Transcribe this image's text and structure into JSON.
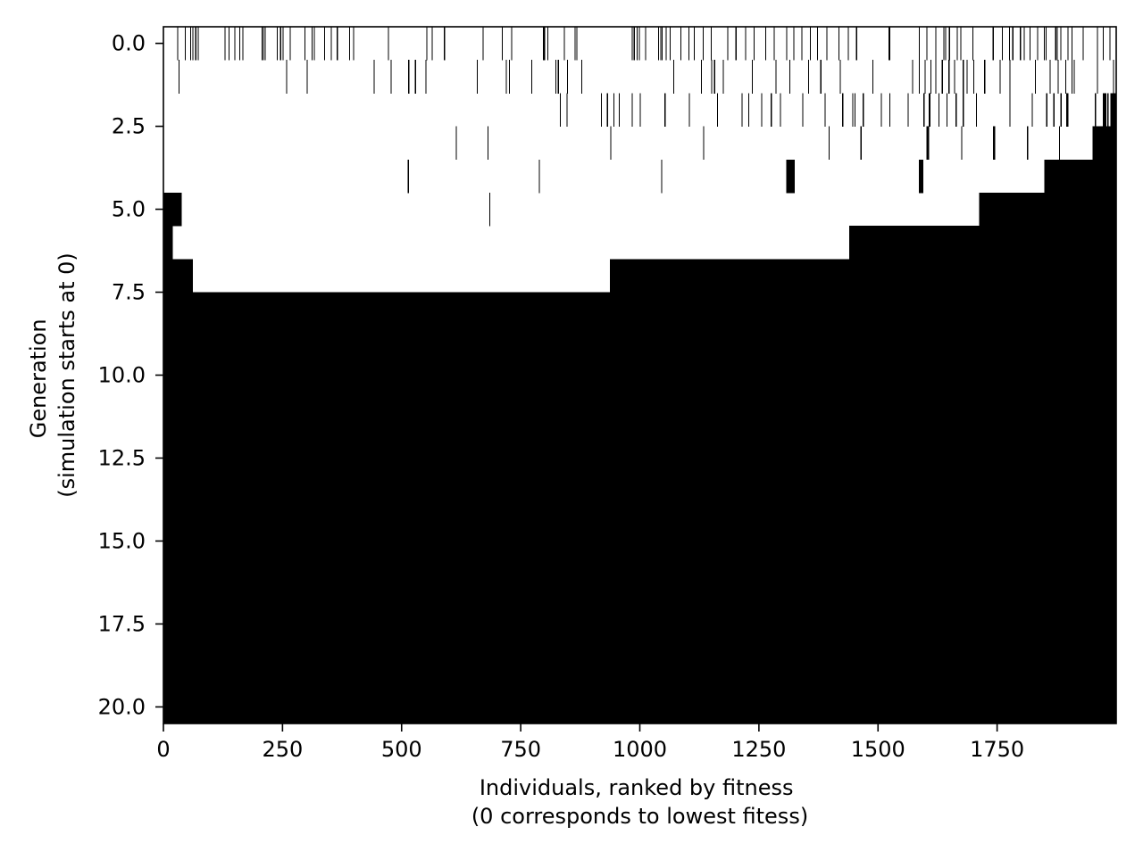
{
  "chart_data": {
    "type": "heatmap",
    "title": "",
    "xlabel_lines": [
      "Individuals, ranked by fitness",
      "(0 corresponds to lowest fitess)"
    ],
    "ylabel_lines": [
      "Generation",
      "(simulation starts at 0)"
    ],
    "x_ticks": [
      0,
      250,
      500,
      750,
      1000,
      1250,
      1500,
      1750
    ],
    "x_tick_labels": [
      "0",
      "250",
      "500",
      "750",
      "1000",
      "1250",
      "1500",
      "1750"
    ],
    "y_ticks": [
      0.0,
      2.5,
      5.0,
      7.5,
      10.0,
      12.5,
      15.0,
      17.5,
      20.0
    ],
    "y_tick_labels": [
      "0.0",
      "2.5",
      "5.0",
      "7.5",
      "10.0",
      "12.5",
      "15.0",
      "17.5",
      "20.0"
    ],
    "xlim": [
      0,
      2000
    ],
    "ylim": [
      -0.5,
      20.5
    ],
    "y_inverted": true,
    "n_individuals": 2000,
    "n_generations": 21,
    "colors": {
      "background": "#ffffff",
      "cell_on": "#000000"
    },
    "rows": [
      {
        "generation": 0,
        "runs": [
          [
            29,
            31
          ],
          [
            45,
            47
          ],
          [
            56,
            58
          ],
          [
            61,
            63
          ],
          [
            67,
            69
          ],
          [
            72,
            74
          ],
          [
            128,
            130
          ],
          [
            137,
            139
          ],
          [
            149,
            151
          ],
          [
            159,
            161
          ],
          [
            166,
            168
          ],
          [
            206,
            208
          ],
          [
            209,
            211
          ],
          [
            213,
            215
          ],
          [
            238,
            240
          ],
          [
            245,
            247
          ],
          [
            250,
            252
          ],
          [
            265,
            267
          ],
          [
            296,
            298
          ],
          [
            311,
            313
          ],
          [
            316,
            318
          ],
          [
            337,
            339
          ],
          [
            351,
            353
          ],
          [
            364,
            366
          ],
          [
            390,
            392
          ],
          [
            398,
            400
          ],
          [
            471,
            473
          ],
          [
            552,
            554
          ],
          [
            563,
            565
          ],
          [
            589,
            591
          ],
          [
            670,
            672
          ],
          [
            710,
            712
          ],
          [
            730,
            732
          ],
          [
            797,
            801
          ],
          [
            806,
            808
          ],
          [
            841,
            843
          ],
          [
            863,
            865
          ],
          [
            867,
            869
          ],
          [
            983,
            985
          ],
          [
            987,
            990
          ],
          [
            993,
            995
          ],
          [
            998,
            1000
          ],
          [
            1011,
            1013
          ],
          [
            1038,
            1040
          ],
          [
            1043,
            1045
          ],
          [
            1046,
            1048
          ],
          [
            1054,
            1056
          ],
          [
            1063,
            1065
          ],
          [
            1085,
            1087
          ],
          [
            1102,
            1104
          ],
          [
            1113,
            1115
          ],
          [
            1132,
            1134
          ],
          [
            1149,
            1151
          ],
          [
            1184,
            1186
          ],
          [
            1201,
            1203
          ],
          [
            1221,
            1223
          ],
          [
            1239,
            1241
          ],
          [
            1263,
            1265
          ],
          [
            1281,
            1283
          ],
          [
            1307,
            1309
          ],
          [
            1322,
            1324
          ],
          [
            1339,
            1341
          ],
          [
            1357,
            1359
          ],
          [
            1372,
            1374
          ],
          [
            1392,
            1394
          ],
          [
            1417,
            1419
          ],
          [
            1437,
            1439
          ],
          [
            1454,
            1456
          ],
          [
            1522,
            1524
          ],
          [
            1524,
            1526
          ],
          [
            1586,
            1588
          ],
          [
            1602,
            1604
          ],
          [
            1620,
            1622
          ],
          [
            1637,
            1639
          ],
          [
            1641,
            1643
          ],
          [
            1649,
            1651
          ],
          [
            1665,
            1667
          ],
          [
            1673,
            1675
          ],
          [
            1698,
            1700
          ],
          [
            1740,
            1743
          ],
          [
            1760,
            1762
          ],
          [
            1775,
            1777
          ],
          [
            1782,
            1784
          ],
          [
            1798,
            1800
          ],
          [
            1806,
            1808
          ],
          [
            1818,
            1820
          ],
          [
            1834,
            1836
          ],
          [
            1848,
            1850
          ],
          [
            1852,
            1854
          ],
          [
            1872,
            1874
          ],
          [
            1875,
            1877
          ],
          [
            1883,
            1885
          ],
          [
            1898,
            1900
          ],
          [
            1906,
            1908
          ],
          [
            1930,
            1932
          ],
          [
            1960,
            1962
          ],
          [
            1972,
            1974
          ],
          [
            1986,
            1988
          ]
        ]
      },
      {
        "generation": 1,
        "runs": [
          [
            32,
            34
          ],
          [
            258,
            260
          ],
          [
            301,
            303
          ],
          [
            441,
            443
          ],
          [
            477,
            479
          ],
          [
            514,
            516
          ],
          [
            528,
            530
          ],
          [
            550,
            552
          ],
          [
            658,
            660
          ],
          [
            719,
            721
          ],
          [
            725,
            727
          ],
          [
            772,
            774
          ],
          [
            823,
            825
          ],
          [
            828,
            830
          ],
          [
            847,
            849
          ],
          [
            877,
            879
          ],
          [
            1070,
            1072
          ],
          [
            1128,
            1130
          ],
          [
            1150,
            1152
          ],
          [
            1156,
            1158
          ],
          [
            1174,
            1176
          ],
          [
            1235,
            1237
          ],
          [
            1285,
            1287
          ],
          [
            1314,
            1316
          ],
          [
            1353,
            1355
          ],
          [
            1379,
            1381
          ],
          [
            1420,
            1422
          ],
          [
            1488,
            1490
          ],
          [
            1572,
            1574
          ],
          [
            1586,
            1588
          ],
          [
            1598,
            1600
          ],
          [
            1610,
            1612
          ],
          [
            1620,
            1622
          ],
          [
            1634,
            1636
          ],
          [
            1648,
            1650
          ],
          [
            1660,
            1662
          ],
          [
            1678,
            1680
          ],
          [
            1686,
            1688
          ],
          [
            1700,
            1702
          ],
          [
            1723,
            1725
          ],
          [
            1755,
            1757
          ],
          [
            1776,
            1778
          ],
          [
            1829,
            1831
          ],
          [
            1860,
            1862
          ],
          [
            1877,
            1879
          ],
          [
            1893,
            1895
          ],
          [
            1906,
            1908
          ],
          [
            1911,
            1913
          ],
          [
            1960,
            1962
          ],
          [
            1993,
            1995
          ]
        ]
      },
      {
        "generation": 2,
        "runs": [
          [
            832,
            834
          ],
          [
            846,
            848
          ],
          [
            918,
            920
          ],
          [
            931,
            933
          ],
          [
            945,
            947
          ],
          [
            956,
            958
          ],
          [
            983,
            985
          ],
          [
            1000,
            1002
          ],
          [
            1052,
            1054
          ],
          [
            1103,
            1105
          ],
          [
            1162,
            1164
          ],
          [
            1214,
            1216
          ],
          [
            1228,
            1230
          ],
          [
            1255,
            1257
          ],
          [
            1275,
            1277
          ],
          [
            1294,
            1296
          ],
          [
            1341,
            1343
          ],
          [
            1388,
            1390
          ],
          [
            1425,
            1427
          ],
          [
            1446,
            1448
          ],
          [
            1451,
            1453
          ],
          [
            1468,
            1470
          ],
          [
            1506,
            1508
          ],
          [
            1524,
            1526
          ],
          [
            1562,
            1564
          ],
          [
            1595,
            1598
          ],
          [
            1606,
            1610
          ],
          [
            1627,
            1629
          ],
          [
            1644,
            1646
          ],
          [
            1663,
            1665
          ],
          [
            1678,
            1680
          ],
          [
            1706,
            1708
          ],
          [
            1776,
            1778
          ],
          [
            1823,
            1825
          ],
          [
            1853,
            1856
          ],
          [
            1868,
            1871
          ],
          [
            1883,
            1886
          ],
          [
            1895,
            1900
          ],
          [
            1955,
            1958
          ],
          [
            1972,
            1979
          ],
          [
            1981,
            1984
          ],
          [
            1988,
            2000
          ]
        ]
      },
      {
        "generation": 3,
        "runs": [
          [
            614,
            616
          ],
          [
            680,
            682
          ],
          [
            938,
            940
          ],
          [
            1133,
            1135
          ],
          [
            1396,
            1398
          ],
          [
            1463,
            1466
          ],
          [
            1602,
            1607
          ],
          [
            1675,
            1677
          ],
          [
            1741,
            1746
          ],
          [
            1813,
            1815
          ],
          [
            1880,
            1882
          ],
          [
            1950,
            2000
          ]
        ]
      },
      {
        "generation": 4,
        "runs": [
          [
            513,
            515
          ],
          [
            788,
            790
          ],
          [
            1045,
            1047
          ],
          [
            1307,
            1325
          ],
          [
            1586,
            1595
          ],
          [
            1849,
            2000
          ]
        ]
      },
      {
        "generation": 5,
        "runs": [
          [
            0,
            38
          ],
          [
            684,
            686
          ],
          [
            1712,
            2000
          ]
        ]
      },
      {
        "generation": 6,
        "runs": [
          [
            0,
            20
          ],
          [
            1440,
            2000
          ]
        ]
      },
      {
        "generation": 7,
        "runs": [
          [
            0,
            62
          ],
          [
            937,
            2000
          ]
        ]
      },
      {
        "generation": 8,
        "runs": [
          [
            0,
            2000
          ]
        ]
      },
      {
        "generation": 9,
        "runs": [
          [
            0,
            2000
          ]
        ]
      },
      {
        "generation": 10,
        "runs": [
          [
            0,
            2000
          ]
        ]
      },
      {
        "generation": 11,
        "runs": [
          [
            0,
            2000
          ]
        ]
      },
      {
        "generation": 12,
        "runs": [
          [
            0,
            2000
          ]
        ]
      },
      {
        "generation": 13,
        "runs": [
          [
            0,
            2000
          ]
        ]
      },
      {
        "generation": 14,
        "runs": [
          [
            0,
            2000
          ]
        ]
      },
      {
        "generation": 15,
        "runs": [
          [
            0,
            2000
          ]
        ]
      },
      {
        "generation": 16,
        "runs": [
          [
            0,
            2000
          ]
        ]
      },
      {
        "generation": 17,
        "runs": [
          [
            0,
            2000
          ]
        ]
      },
      {
        "generation": 18,
        "runs": [
          [
            0,
            2000
          ]
        ]
      },
      {
        "generation": 19,
        "runs": [
          [
            0,
            2000
          ]
        ]
      },
      {
        "generation": 20,
        "runs": [
          [
            0,
            2000
          ]
        ]
      }
    ]
  }
}
